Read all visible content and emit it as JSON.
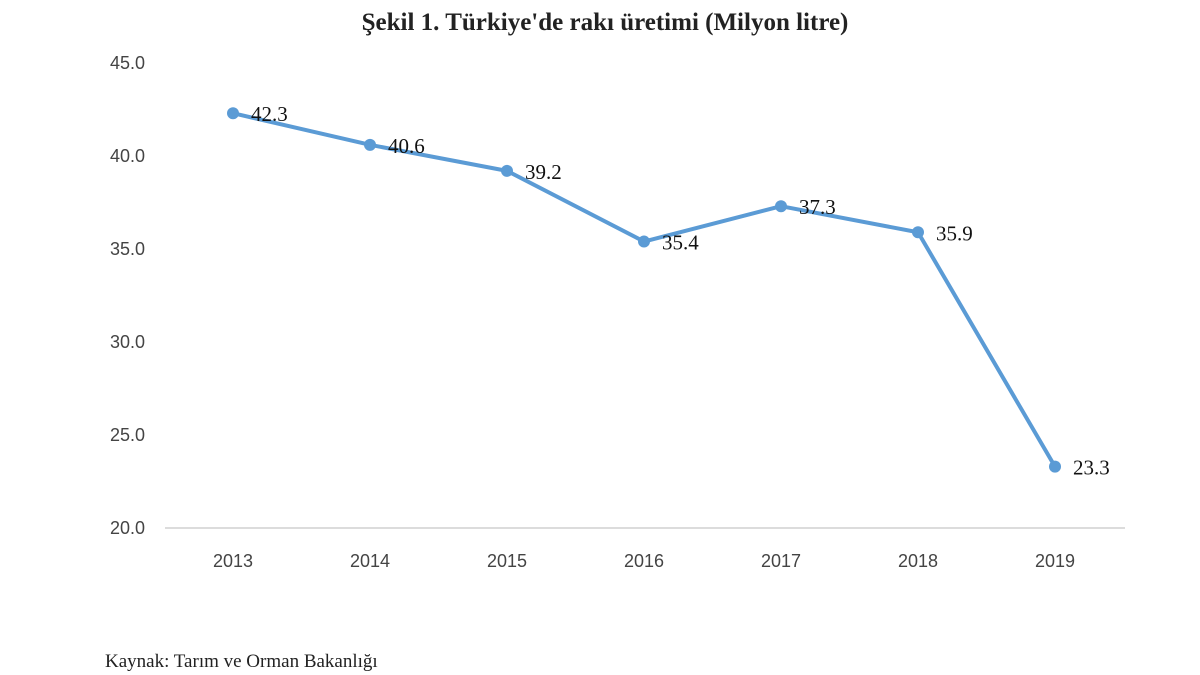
{
  "chart_data": {
    "type": "line",
    "title": "Şekil 1. Türkiye'de rakı üretimi (Milyon litre)",
    "xlabel": "",
    "ylabel": "",
    "categories": [
      "2013",
      "2014",
      "2015",
      "2016",
      "2017",
      "2018",
      "2019"
    ],
    "values": [
      42.3,
      40.6,
      39.2,
      35.4,
      37.3,
      35.9,
      23.3
    ],
    "data_labels": [
      "42.3",
      "40.6",
      "39.2",
      "35.4",
      "37.3",
      "35.9",
      "23.3"
    ],
    "ylim": [
      20.0,
      45.0
    ],
    "yticks": [
      "20.0",
      "25.0",
      "30.0",
      "35.0",
      "40.0",
      "45.0"
    ],
    "grid": false,
    "legend": "none",
    "line_color": "#5B9BD5",
    "source": "Kaynak:  Tarım ve Orman Bakanlığı"
  }
}
